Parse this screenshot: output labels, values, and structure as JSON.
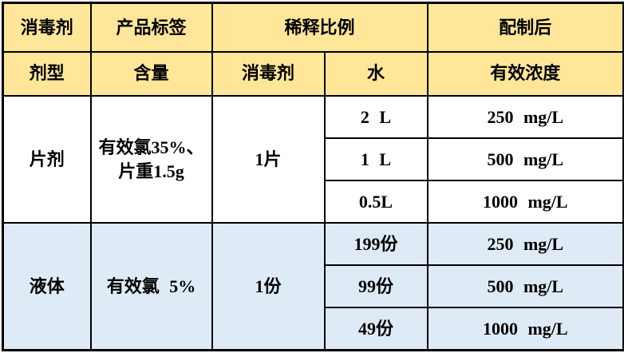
{
  "colors": {
    "header_bg": "#FFE699",
    "tablet_section_bg": "#FFFFFF",
    "liquid_section_bg": "#DEEBF7",
    "border": "#000000",
    "text": "#000000"
  },
  "table": {
    "header_row1": {
      "col1": "消毒剂",
      "col2": "产品标签",
      "col34": "稀释比例",
      "col5": "配制后"
    },
    "header_row2": {
      "col1": "剂型",
      "col2": "含量",
      "col3": "消毒剂",
      "col4": "水",
      "col5": "有效浓度"
    },
    "tablet": {
      "form": "片剂",
      "content": "有效氯35%、\n片重1.5g",
      "dose": "1片",
      "rows": [
        {
          "water": "2 L",
          "concentration": "250 mg/L"
        },
        {
          "water": "1 L",
          "concentration": "500 mg/L"
        },
        {
          "water": "0.5L",
          "concentration": "1000 mg/L"
        }
      ]
    },
    "liquid": {
      "form": "液体",
      "content": "有效氯 5%",
      "dose": "1份",
      "rows": [
        {
          "water": "199份",
          "concentration": "250 mg/L"
        },
        {
          "water": "99份",
          "concentration": "500 mg/L"
        },
        {
          "water": "49份",
          "concentration": "1000 mg/L"
        }
      ]
    }
  },
  "chart_data": {
    "type": "table",
    "header_row1": [
      "消毒剂",
      "产品标签",
      "稀释比例",
      "配制后"
    ],
    "header_row2": [
      "剂型",
      "含量",
      "消毒剂",
      "水",
      "有效浓度"
    ],
    "rows": [
      [
        "片剂",
        "有效氯35%、片重1.5g",
        "1片",
        "2 L",
        "250 mg/L"
      ],
      [
        "片剂",
        "有效氯35%、片重1.5g",
        "1片",
        "1 L",
        "500 mg/L"
      ],
      [
        "片剂",
        "有效氯35%、片重1.5g",
        "1片",
        "0.5L",
        "1000 mg/L"
      ],
      [
        "液体",
        "有效氯 5%",
        "1份",
        "199份",
        "250 mg/L"
      ],
      [
        "液体",
        "有效氯 5%",
        "1份",
        "99份",
        "500 mg/L"
      ],
      [
        "液体",
        "有效氯 5%",
        "1份",
        "49份",
        "1000 mg/L"
      ]
    ]
  }
}
